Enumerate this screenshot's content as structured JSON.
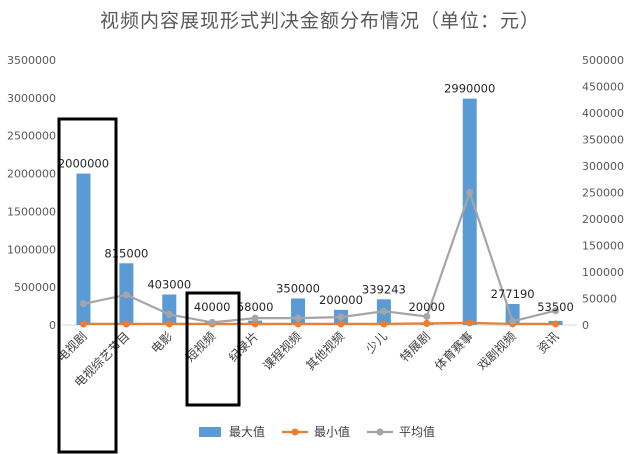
{
  "chart_data": {
    "type": "bar",
    "title": "视频内容展现形式判决金额分布情况（单位：元）",
    "categories": [
      "电视剧",
      "电视综艺节目",
      "电影",
      "短视频",
      "纪录片",
      "课程视频",
      "其他视频",
      "少儿",
      "特展剧",
      "体育赛事",
      "戏剧视频",
      "资讯"
    ],
    "series": [
      {
        "name": "最大值",
        "type": "bar",
        "axis": "left",
        "color": "#5B9BD5",
        "values": [
          2000000,
          815000,
          403000,
          40000,
          58000,
          350000,
          200000,
          339243,
          20000,
          2990000,
          277190,
          53500
        ],
        "data_labels": [
          "2000000",
          "815000",
          "403000",
          "40000",
          "58000",
          "350000",
          "200000",
          "339243",
          "20000",
          "2990000",
          "277190",
          "53500"
        ]
      },
      {
        "name": "最小值",
        "type": "line",
        "axis": "right",
        "color": "#ED7D31",
        "values": [
          2000,
          2000,
          2000,
          2000,
          2000,
          2000,
          2000,
          2000,
          3000,
          4000,
          2000,
          2000
        ]
      },
      {
        "name": "平均值",
        "type": "line",
        "axis": "right",
        "color": "#A5A5A5",
        "values": [
          40000,
          57000,
          20000,
          5000,
          13000,
          13000,
          15000,
          26000,
          16000,
          250000,
          7000,
          27000
        ]
      }
    ],
    "left_axis": {
      "min": 0,
      "max": 3500000,
      "step": 500000,
      "ticks": [
        "0",
        "500000",
        "1000000",
        "1500000",
        "2000000",
        "2500000",
        "3000000",
        "3500000"
      ]
    },
    "right_axis": {
      "min": 0,
      "max": 500000,
      "step": 50000,
      "ticks": [
        "0",
        "50000",
        "100000",
        "150000",
        "200000",
        "250000",
        "300000",
        "350000",
        "400000",
        "450000",
        "500000"
      ]
    },
    "grid": false,
    "legend_position": "bottom",
    "annotations": [
      {
        "type": "rectangle-outline",
        "color": "#000000",
        "encloses_categories": [
          "电视剧"
        ]
      },
      {
        "type": "rectangle-outline",
        "color": "#000000",
        "encloses_categories": [
          "短视频"
        ]
      }
    ]
  }
}
